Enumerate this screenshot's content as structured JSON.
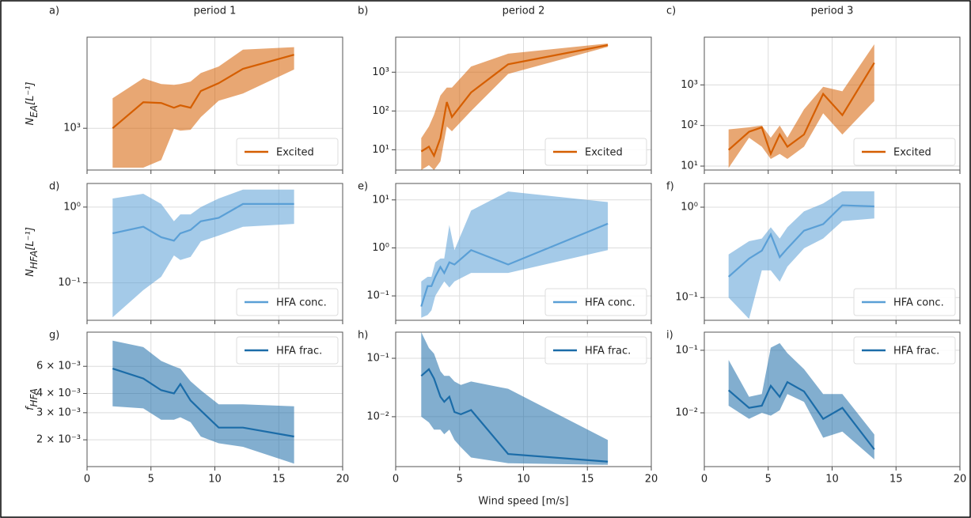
{
  "chart_data": [
    {
      "type": "line",
      "panel_label": "a)",
      "title": "period 1",
      "ylabel": {
        "symbol": "N",
        "subscript": "EA",
        "unit": "[L⁻¹]"
      },
      "x": [
        2,
        4.4,
        5.8,
        6.8,
        7.3,
        8.1,
        8.9,
        10.3,
        12.2,
        16.2
      ],
      "series": [
        {
          "name": "Excited",
          "color": "#d55e00",
          "values": [
            1000,
            1560,
            1540,
            1420,
            1480,
            1420,
            1890,
            2160,
            2760,
            3510
          ],
          "upper": [
            1670,
            2350,
            2130,
            2100,
            2130,
            2220,
            2570,
            2870,
            3830,
            4000
          ],
          "lower": [
            510,
            510,
            580,
            990,
            960,
            975,
            1210,
            1600,
            1810,
            2730
          ]
        }
      ],
      "xlim": [
        0,
        20
      ],
      "xticks": [
        0,
        5,
        10,
        15,
        20
      ],
      "xticklabels": false,
      "yscale": "log",
      "ylim": [
        490,
        4740
      ],
      "yticks": [
        {
          "value": 1000,
          "label": "10³"
        }
      ],
      "grid": true,
      "legend": "lower right"
    },
    {
      "type": "line",
      "panel_label": "b)",
      "title": "period 2",
      "x": [
        2,
        2.6,
        3,
        3.5,
        4,
        4.4,
        5.9,
        8.8,
        16.6
      ],
      "series": [
        {
          "name": "Excited",
          "color": "#d55e00",
          "values": [
            9,
            12,
            7,
            20,
            170,
            70,
            300,
            1600,
            5000
          ],
          "upper": [
            20,
            40,
            80,
            250,
            400,
            400,
            1400,
            3000,
            5500
          ],
          "lower": [
            3,
            4,
            3,
            5,
            40,
            30,
            100,
            900,
            4500
          ]
        }
      ],
      "xlim": [
        0,
        20
      ],
      "xticks": [
        0,
        5,
        10,
        15,
        20
      ],
      "xticklabels": false,
      "yscale": "log",
      "ylim": [
        3,
        8000
      ],
      "yticks": [
        {
          "value": 10,
          "label": "10¹"
        },
        {
          "value": 100,
          "label": "10²"
        },
        {
          "value": 1000,
          "label": "10³"
        }
      ],
      "grid": true,
      "legend": "lower right"
    },
    {
      "type": "line",
      "panel_label": "c)",
      "title": "period 3",
      "x": [
        1.9,
        3.5,
        4.5,
        5.2,
        5.9,
        6.5,
        7.8,
        9.3,
        10.8,
        13.3
      ],
      "series": [
        {
          "name": "Excited",
          "color": "#d55e00",
          "values": [
            25,
            70,
            90,
            20,
            60,
            30,
            60,
            600,
            180,
            3500
          ],
          "upper": [
            80,
            90,
            100,
            50,
            100,
            50,
            250,
            900,
            700,
            10000
          ],
          "lower": [
            9,
            50,
            30,
            15,
            20,
            15,
            30,
            200,
            60,
            400
          ]
        }
      ],
      "xlim": [
        0,
        20
      ],
      "xticks": [
        0,
        5,
        10,
        15,
        20
      ],
      "xticklabels": false,
      "yscale": "log",
      "ylim": [
        8,
        15000
      ],
      "yticks": [
        {
          "value": 10,
          "label": "10¹"
        },
        {
          "value": 100,
          "label": "10²"
        },
        {
          "value": 1000,
          "label": "10³"
        }
      ],
      "grid": true,
      "legend": "lower right"
    },
    {
      "type": "line",
      "panel_label": "d)",
      "ylabel": {
        "symbol": "N",
        "subscript": "HFA",
        "unit": "[L⁻¹]"
      },
      "x": [
        2,
        4.4,
        5.8,
        6.8,
        7.3,
        8.1,
        8.9,
        10.3,
        12.2,
        16.2
      ],
      "series": [
        {
          "name": "HFA conc.",
          "color": "#5a9fd6",
          "values": [
            0.45,
            0.55,
            0.4,
            0.36,
            0.45,
            0.5,
            0.65,
            0.72,
            1.1,
            1.1
          ],
          "upper": [
            1.3,
            1.5,
            1.1,
            0.65,
            0.8,
            0.8,
            1.0,
            1.3,
            1.7,
            1.7
          ],
          "lower": [
            0.035,
            0.08,
            0.12,
            0.23,
            0.2,
            0.22,
            0.35,
            0.42,
            0.55,
            0.6
          ]
        }
      ],
      "xlim": [
        0,
        20
      ],
      "xticks": [
        0,
        5,
        10,
        15,
        20
      ],
      "xticklabels": false,
      "yscale": "log",
      "ylim": [
        0.032,
        2.05
      ],
      "yticks": [
        {
          "value": 0.1,
          "label": "10⁻¹"
        },
        {
          "value": 1,
          "label": "10⁰"
        }
      ],
      "grid": true,
      "legend": "lower right"
    },
    {
      "type": "line",
      "panel_label": "e)",
      "x": [
        2,
        2.5,
        2.8,
        3.1,
        3.5,
        3.8,
        4.2,
        4.6,
        5.9,
        8.8,
        16.6
      ],
      "series": [
        {
          "name": "HFA conc.",
          "color": "#5a9fd6",
          "values": [
            0.06,
            0.16,
            0.16,
            0.25,
            0.4,
            0.3,
            0.5,
            0.45,
            0.9,
            0.45,
            3.2
          ],
          "upper": [
            0.2,
            0.25,
            0.25,
            0.5,
            0.6,
            0.6,
            3,
            0.9,
            6,
            15,
            9
          ],
          "lower": [
            0.035,
            0.04,
            0.05,
            0.1,
            0.15,
            0.2,
            0.15,
            0.2,
            0.3,
            0.3,
            0.9
          ]
        }
      ],
      "xlim": [
        0,
        20
      ],
      "xticks": [
        0,
        5,
        10,
        15,
        20
      ],
      "xticklabels": false,
      "yscale": "log",
      "ylim": [
        0.031,
        22
      ],
      "yticks": [
        {
          "value": 0.1,
          "label": "10⁻¹"
        },
        {
          "value": 1,
          "label": "10⁰"
        },
        {
          "value": 10,
          "label": "10¹"
        }
      ],
      "grid": true,
      "legend": "lower right"
    },
    {
      "type": "line",
      "panel_label": "f)",
      "x": [
        1.9,
        3.5,
        4.5,
        5.2,
        5.9,
        6.5,
        7.8,
        9.3,
        10.8,
        13.3
      ],
      "series": [
        {
          "name": "HFA conc.",
          "color": "#5a9fd6",
          "values": [
            0.17,
            0.27,
            0.33,
            0.5,
            0.28,
            0.35,
            0.55,
            0.65,
            1.05,
            1.02
          ],
          "upper": [
            0.3,
            0.42,
            0.45,
            0.6,
            0.45,
            0.6,
            0.9,
            1.1,
            1.5,
            1.5
          ],
          "lower": [
            0.1,
            0.058,
            0.2,
            0.2,
            0.15,
            0.22,
            0.35,
            0.45,
            0.7,
            0.75
          ]
        }
      ],
      "xlim": [
        0,
        20
      ],
      "xticks": [
        0,
        5,
        10,
        15,
        20
      ],
      "xticklabels": false,
      "yscale": "log",
      "ylim": [
        0.056,
        1.83
      ],
      "yticks": [
        {
          "value": 0.1,
          "label": "10⁻¹"
        },
        {
          "value": 1,
          "label": "10⁰"
        }
      ],
      "grid": true,
      "legend": "lower right"
    },
    {
      "type": "line",
      "panel_label": "g)",
      "ylabel": {
        "symbol": "f",
        "subscript": "HFA"
      },
      "x": [
        2,
        4.4,
        5.8,
        6.8,
        7.3,
        8.1,
        8.9,
        10.3,
        12.2,
        16.2
      ],
      "series": [
        {
          "name": "HFA frac.",
          "color": "#1b6ca8",
          "values": [
            0.0058,
            0.005,
            0.0042,
            0.004,
            0.0046,
            0.0036,
            0.0031,
            0.0024,
            0.0024,
            0.0021
          ],
          "upper": [
            0.0088,
            0.008,
            0.0065,
            0.006,
            0.0058,
            0.0048,
            0.0042,
            0.0034,
            0.0034,
            0.0033
          ],
          "lower": [
            0.0033,
            0.0032,
            0.0027,
            0.0027,
            0.0028,
            0.0026,
            0.0021,
            0.0019,
            0.0018,
            0.0014
          ]
        }
      ],
      "xlim": [
        0,
        20
      ],
      "xticks": [
        0,
        5,
        10,
        15,
        20
      ],
      "xticklabels": true,
      "yscale": "log",
      "ylim": [
        0.00134,
        0.01
      ],
      "yticks": [
        {
          "value": 0.002,
          "label": "2 × 10⁻³"
        },
        {
          "value": 0.003,
          "label": "3 × 10⁻³"
        },
        {
          "value": 0.004,
          "label": "4 × 10⁻³"
        },
        {
          "value": 0.006,
          "label": "6 × 10⁻³"
        }
      ],
      "grid": true,
      "legend": "upper right"
    },
    {
      "type": "line",
      "panel_label": "h)",
      "xlabel": "Wind speed [m/s]",
      "x": [
        2,
        2.6,
        3,
        3.5,
        3.8,
        4.2,
        4.6,
        5.1,
        5.9,
        8.8,
        16.6
      ],
      "series": [
        {
          "name": "HFA frac.",
          "color": "#1b6ca8",
          "values": [
            0.05,
            0.065,
            0.045,
            0.022,
            0.018,
            0.022,
            0.012,
            0.011,
            0.013,
            0.0023,
            0.0017
          ],
          "upper": [
            0.28,
            0.15,
            0.12,
            0.06,
            0.05,
            0.05,
            0.04,
            0.035,
            0.04,
            0.03,
            0.004
          ],
          "lower": [
            0.01,
            0.008,
            0.006,
            0.006,
            0.005,
            0.006,
            0.004,
            0.003,
            0.002,
            0.0016,
            0.0015
          ]
        }
      ],
      "xlim": [
        0,
        20
      ],
      "xticks": [
        0,
        5,
        10,
        15,
        20
      ],
      "xticklabels": true,
      "yscale": "log",
      "ylim": [
        0.0014,
        0.28
      ],
      "yticks": [
        {
          "value": 0.01,
          "label": "10⁻²"
        },
        {
          "value": 0.1,
          "label": "10⁻¹"
        }
      ],
      "grid": true,
      "legend": "upper right"
    },
    {
      "type": "line",
      "panel_label": "i)",
      "x": [
        1.9,
        3.5,
        4.5,
        5.2,
        5.9,
        6.5,
        7.8,
        9.3,
        10.8,
        13.3
      ],
      "series": [
        {
          "name": "HFA frac.",
          "color": "#1b6ca8",
          "values": [
            0.023,
            0.012,
            0.013,
            0.027,
            0.018,
            0.031,
            0.022,
            0.008,
            0.012,
            0.0026
          ],
          "upper": [
            0.07,
            0.018,
            0.02,
            0.11,
            0.13,
            0.09,
            0.05,
            0.02,
            0.02,
            0.0045
          ],
          "lower": [
            0.013,
            0.008,
            0.01,
            0.009,
            0.011,
            0.02,
            0.015,
            0.004,
            0.005,
            0.0018
          ]
        }
      ],
      "xlim": [
        0,
        20
      ],
      "xticks": [
        0,
        5,
        10,
        15,
        20
      ],
      "xticklabels": true,
      "yscale": "log",
      "ylim": [
        0.00138,
        0.195
      ],
      "yticks": [
        {
          "value": 0.01,
          "label": "10⁻²"
        },
        {
          "value": 0.1,
          "label": "10⁻¹"
        }
      ],
      "grid": true,
      "legend": "upper right"
    }
  ]
}
